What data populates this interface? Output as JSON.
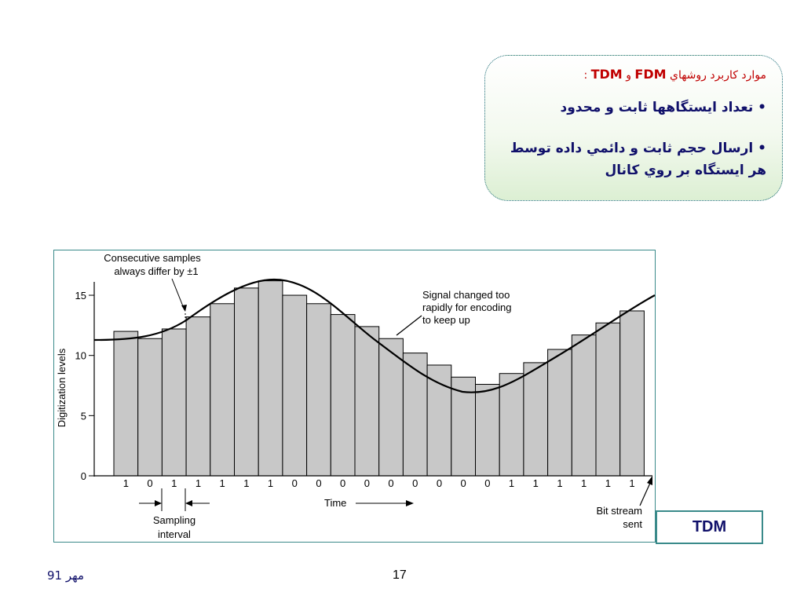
{
  "callout": {
    "heading_prefix": "موارد كاربرد روشهاي",
    "heading_fdm": "FDM",
    "heading_and": "و",
    "heading_tdm": "TDM",
    "heading_colon": ":",
    "bullet1": "• تعداد ايستگاهها ثابت و محدود",
    "bullet2_line1": "• ارسال حجم ثابت و دائمي داده توسط",
    "bullet2_line2": "هر ايستگاه بر روي كانال"
  },
  "chart_data": {
    "type": "bar",
    "ylabel": "Digitization levels",
    "yticks": [
      0,
      5,
      10,
      15
    ],
    "ylim": [
      0,
      16.5
    ],
    "values": [
      12,
      11.4,
      12.2,
      13.2,
      14.3,
      15.6,
      16.2,
      15,
      14.3,
      13.4,
      12.4,
      11.4,
      10.2,
      9.2,
      8.2,
      7.6,
      8.5,
      9.4,
      10.5,
      11.7,
      12.7,
      13.7
    ],
    "bits": [
      "1",
      "0",
      "1",
      "1",
      "1",
      "1",
      "1",
      "0",
      "0",
      "0",
      "0",
      "0",
      "0",
      "0",
      "0",
      "0",
      "1",
      "1",
      "1",
      "1",
      "1",
      "1"
    ],
    "annotations": {
      "consecutive_line1": "Consecutive samples",
      "consecutive_line2": "always differ by ±1",
      "signal_line1": "Signal changed too",
      "signal_line2": "rapidly for encoding",
      "signal_line3": "to keep up",
      "time": "Time",
      "sampling_line1": "Sampling",
      "sampling_line2": "interval",
      "bitstream_line1": "Bit stream",
      "bitstream_line2": "sent"
    }
  },
  "tdm_label": "TDM",
  "footer": {
    "date": "مهر 91",
    "page": "17"
  }
}
